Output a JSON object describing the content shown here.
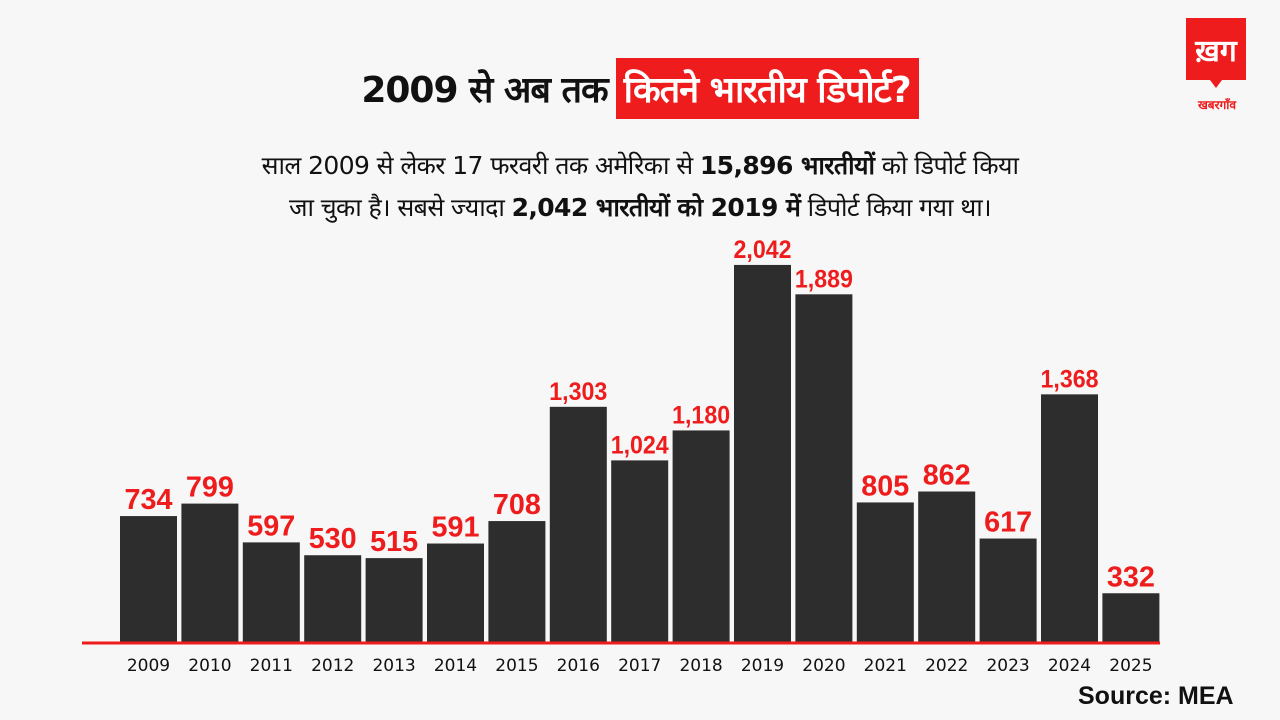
{
  "header": {
    "title_plain": "2009 से अब तक",
    "title_highlight": "कितने भारतीय डिपोर्ट?",
    "logo_glyph": "ख़ग",
    "logo_text": "खबरगाँव"
  },
  "subtitle": {
    "line1_a": "साल 2009 से लेकर 17 फरवरी तक अमेरिका से ",
    "line1_b": "15,896 भारतीयों",
    "line1_c": " को डिपोर्ट किया",
    "line2_a": "जा चुका है। सबसे ज्यादा ",
    "line2_b": "2,042 भारतीयों को 2019 में",
    "line2_c": " डिपोर्ट किया गया था।"
  },
  "source": "Source: MEA",
  "colors": {
    "accent": "#ee1c1c",
    "bar": "#2d2d2d",
    "label": "#ee1c1c",
    "axis": "#ee1c1c"
  },
  "chart_data": {
    "type": "bar",
    "title": "2009 से अब तक कितने भारतीय डिपोर्ट?",
    "xlabel": "",
    "ylabel": "",
    "categories": [
      "2009",
      "2010",
      "2011",
      "2012",
      "2013",
      "2014",
      "2015",
      "2016",
      "2017",
      "2018",
      "2019",
      "2020",
      "2021",
      "2022",
      "2023",
      "2024",
      "2025"
    ],
    "values": [
      734,
      799,
      597,
      530,
      515,
      591,
      708,
      1303,
      1024,
      1180,
      2042,
      1889,
      805,
      862,
      617,
      1368,
      332
    ],
    "value_labels": [
      "734",
      "799",
      "597",
      "530",
      "515",
      "591",
      "708",
      "1,303",
      "1,024",
      "1,180",
      "2,042",
      "1,889",
      "805",
      "862",
      "617",
      "1,368",
      "332"
    ],
    "ylim": [
      0,
      2100
    ],
    "grid": false,
    "legend": "none"
  }
}
